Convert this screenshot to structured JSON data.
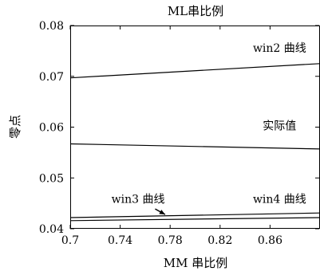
{
  "chart_data": {
    "type": "line",
    "title": "ML串比例",
    "xlabel": "MM 串比例",
    "ylabel": "零点",
    "xlim": [
      0.7,
      0.9
    ],
    "ylim": [
      0.04,
      0.08
    ],
    "x_ticks": [
      0.7,
      0.74,
      0.78,
      0.82,
      0.86
    ],
    "x_tick_labels": [
      "0.7",
      "0.74",
      "0.78",
      "0.82",
      "0.86"
    ],
    "y_ticks": [
      0.04,
      0.05,
      0.06,
      0.07,
      0.08
    ],
    "y_tick_labels": [
      "0.04",
      "0.05",
      "0.06",
      "0.07",
      "0.08"
    ],
    "grid": false,
    "legend": "none",
    "line_color": "#000000",
    "series": [
      {
        "name": "win2 曲线",
        "x": [
          0.7,
          0.9
        ],
        "y": [
          0.0697,
          0.0725
        ]
      },
      {
        "name": "实际值",
        "x": [
          0.7,
          0.9
        ],
        "y": [
          0.0567,
          0.0557
        ]
      },
      {
        "name": "win3 曲线",
        "x": [
          0.7,
          0.9
        ],
        "y": [
          0.0422,
          0.0431
        ]
      },
      {
        "name": "win4 曲线",
        "x": [
          0.7,
          0.9
        ],
        "y": [
          0.0416,
          0.0422
        ]
      }
    ],
    "annotations": [
      {
        "text": "win2 曲线",
        "x": 0.889,
        "y": 0.0748,
        "anchor": "end"
      },
      {
        "text": "实际值",
        "x": 0.881,
        "y": 0.0595,
        "anchor": "end"
      },
      {
        "text": "win3 曲线",
        "x": 0.733,
        "y": 0.0451,
        "anchor": "start"
      },
      {
        "text": "win4 曲线",
        "x": 0.889,
        "y": 0.0451,
        "anchor": "end"
      }
    ],
    "arrow": {
      "from": [
        0.768,
        0.0439
      ],
      "to": [
        0.776,
        0.0428
      ]
    }
  }
}
